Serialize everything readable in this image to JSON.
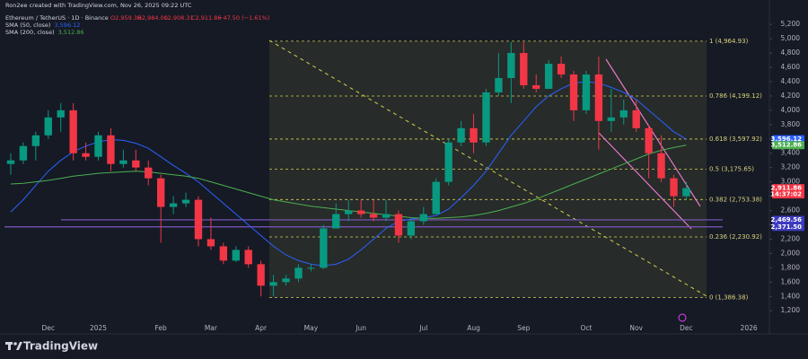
{
  "chart_data": {
    "type": "candlestick",
    "title": "Ron2ee created with TradingView.com, Nov 26, 2025 09:22 UTC",
    "symbol": "Ethereum / TetherUS · 1D · Binance",
    "ohlc_labels": [
      "O2,959.36",
      "H2,984.00",
      "L2,908.31",
      "C2,911.86"
    ],
    "change_label": "−47.50 (−1.61%)",
    "brand": "TradingView",
    "up_color": "#089981",
    "down_color": "#f23645",
    "categories": [
      null,
      null,
      null,
      "Dec",
      null,
      null,
      null,
      "2025",
      null,
      null,
      null,
      null,
      "Feb",
      null,
      null,
      null,
      "Mar",
      null,
      null,
      null,
      "Apr",
      null,
      null,
      null,
      "May",
      null,
      null,
      null,
      "Jun",
      null,
      null,
      null,
      null,
      "Jul",
      null,
      null,
      null,
      "Aug",
      null,
      null,
      null,
      "Sep",
      null,
      null,
      null,
      null,
      "Oct",
      null,
      null,
      null,
      "Nov",
      null,
      null,
      null,
      "Dec",
      null,
      null,
      null,
      null,
      "2026",
      null
    ],
    "open": [
      3250,
      3300,
      3500,
      3650,
      3900,
      4000,
      3400,
      3350,
      3650,
      3250,
      3300,
      3200,
      3050,
      2650,
      2700,
      2750,
      2200,
      2100,
      1900,
      2050,
      1850,
      1550,
      1600,
      1650,
      1800,
      1800,
      2350,
      2550,
      2600,
      2550,
      2500,
      2550,
      2250,
      2450,
      2550,
      3000,
      3550,
      3750,
      3550,
      4250,
      4450,
      4800,
      4350,
      4300,
      4650,
      4500,
      4000,
      4500,
      3850,
      3900,
      4000,
      3750,
      3400,
      3050,
      2800,
      null,
      null,
      null,
      null,
      null,
      null
    ],
    "high": [
      3400,
      3550,
      3700,
      4000,
      4100,
      4100,
      3550,
      3700,
      3750,
      3450,
      3450,
      3300,
      3100,
      2800,
      2850,
      2800,
      2500,
      2150,
      2100,
      2100,
      1900,
      1700,
      1700,
      1850,
      1850,
      2400,
      2700,
      2750,
      2750,
      2750,
      2750,
      2600,
      2500,
      2650,
      3050,
      3600,
      3850,
      3950,
      4300,
      4800,
      4950,
      4950,
      4500,
      4700,
      4750,
      4550,
      4550,
      4750,
      4300,
      4150,
      4150,
      3800,
      3650,
      3100,
      3000,
      null,
      null,
      null,
      null,
      null,
      null
    ],
    "low": [
      3100,
      3250,
      3300,
      3600,
      3700,
      3300,
      3300,
      3300,
      3150,
      3200,
      3150,
      2950,
      2150,
      2550,
      2650,
      2100,
      2050,
      1850,
      1880,
      1800,
      1400,
      1400,
      1550,
      1600,
      1750,
      1780,
      2350,
      2450,
      2500,
      2450,
      2450,
      2150,
      2200,
      2400,
      2550,
      2950,
      3500,
      3400,
      3500,
      4200,
      4100,
      4300,
      4250,
      4300,
      4450,
      3850,
      3950,
      3450,
      3700,
      3800,
      3700,
      3050,
      3000,
      2650,
      2750,
      null,
      null,
      null,
      null,
      null,
      null
    ],
    "close": [
      3300,
      3500,
      3650,
      3900,
      4000,
      3400,
      3350,
      3650,
      3250,
      3300,
      3200,
      3050,
      2650,
      2700,
      2750,
      2200,
      2100,
      1900,
      2050,
      1850,
      1550,
      1600,
      1650,
      1800,
      1800,
      2350,
      2550,
      2600,
      2550,
      2500,
      2550,
      2250,
      2450,
      2550,
      3000,
      3550,
      3750,
      3550,
      4250,
      4450,
      4800,
      4350,
      4300,
      4650,
      4500,
      4000,
      4500,
      3850,
      3900,
      4000,
      3750,
      3400,
      3050,
      2800,
      2911.86,
      null,
      null,
      null,
      null,
      null,
      null
    ],
    "series": [
      {
        "name": "SMA (50, close)",
        "color": "#2962ff",
        "value_label": "3,596.12",
        "values": [
          2580,
          2750,
          2950,
          3150,
          3300,
          3420,
          3500,
          3560,
          3590,
          3580,
          3540,
          3470,
          3350,
          3230,
          3120,
          3000,
          2850,
          2700,
          2550,
          2400,
          2250,
          2100,
          1980,
          1900,
          1850,
          1830,
          1850,
          1920,
          2050,
          2200,
          2350,
          2450,
          2480,
          2500,
          2530,
          2620,
          2780,
          2950,
          3150,
          3400,
          3650,
          3850,
          4050,
          4200,
          4300,
          4380,
          4400,
          4380,
          4320,
          4250,
          4150,
          4000,
          3850,
          3700,
          3596.12,
          null,
          null,
          null,
          null,
          null,
          null
        ]
      },
      {
        "name": "SMA (200, close)",
        "color": "#4caf50",
        "value_label": "3,512.86",
        "values": [
          2970,
          2980,
          3000,
          3020,
          3050,
          3080,
          3100,
          3120,
          3130,
          3140,
          3150,
          3140,
          3120,
          3100,
          3080,
          3050,
          3000,
          2950,
          2900,
          2850,
          2800,
          2750,
          2720,
          2690,
          2660,
          2640,
          2620,
          2600,
          2580,
          2560,
          2540,
          2520,
          2500,
          2490,
          2490,
          2500,
          2510,
          2530,
          2560,
          2600,
          2650,
          2700,
          2760,
          2830,
          2900,
          2970,
          3040,
          3110,
          3180,
          3250,
          3320,
          3390,
          3440,
          3480,
          3512.86,
          null,
          null,
          null,
          null,
          null,
          null
        ]
      }
    ],
    "fib_levels": [
      {
        "value": 4964.93,
        "label": "1 (4,964.93)"
      },
      {
        "value": 4199.12,
        "label": "0.786 (4,199.12)"
      },
      {
        "value": 3597.92,
        "label": "0.618 (3,597.92)"
      },
      {
        "value": 3175.65,
        "label": "0.5 (3,175.65)"
      },
      {
        "value": 2753.38,
        "label": "0.382 (2,753.38)"
      },
      {
        "value": 2230.92,
        "label": "0.236 (2,230.92)"
      },
      {
        "value": 1386.38,
        "label": "0 (1,386.38)"
      }
    ],
    "price_tags": [
      {
        "value": 3596.12,
        "label": "3,596.12",
        "color": "#2962ff"
      },
      {
        "value": 3512.86,
        "label": "3,512.86",
        "color": "#4caf50"
      },
      {
        "value": 2911.86,
        "label": "2,911.86",
        "sub": "14:37:02",
        "color": "#f23645"
      },
      {
        "value": 2469.56,
        "label": "2,469.56",
        "color": "#3d3bbd"
      },
      {
        "value": 2371.5,
        "label": "2,371.50",
        "color": "#3d3bbd"
      }
    ],
    "level_lines": [
      2469.56,
      2371.5
    ],
    "level_color": "#7e57c2",
    "ylim": [
      1090,
      5390
    ],
    "yticks": [
      {
        "value": 1200,
        "label": "1,200"
      },
      {
        "value": 1400,
        "label": "1,400"
      },
      {
        "value": 1600,
        "label": "1,600"
      },
      {
        "value": 1800,
        "label": "1,800"
      },
      {
        "value": 2000,
        "label": "2,000"
      },
      {
        "value": 2200,
        "label": "2,200"
      },
      {
        "value": 2400,
        "label": "2,400"
      },
      {
        "value": 2600,
        "label": "2,600"
      },
      {
        "value": 2800,
        "label": "2,800"
      },
      {
        "value": 3000,
        "label": "3,000"
      },
      {
        "value": 3200,
        "label": "3,200"
      },
      {
        "value": 3400,
        "label": "3,400"
      },
      {
        "value": 3600,
        "label": "3,600"
      },
      {
        "value": 3800,
        "label": "3,800"
      },
      {
        "value": 4000,
        "label": "4,000"
      },
      {
        "value": 4200,
        "label": "4,200"
      },
      {
        "value": 4400,
        "label": "4,400"
      },
      {
        "value": 4600,
        "label": "4,600"
      },
      {
        "value": 4800,
        "label": "4,800"
      },
      {
        "value": 5000,
        "label": "5,000"
      },
      {
        "value": 5200,
        "label": "5,200"
      }
    ]
  }
}
